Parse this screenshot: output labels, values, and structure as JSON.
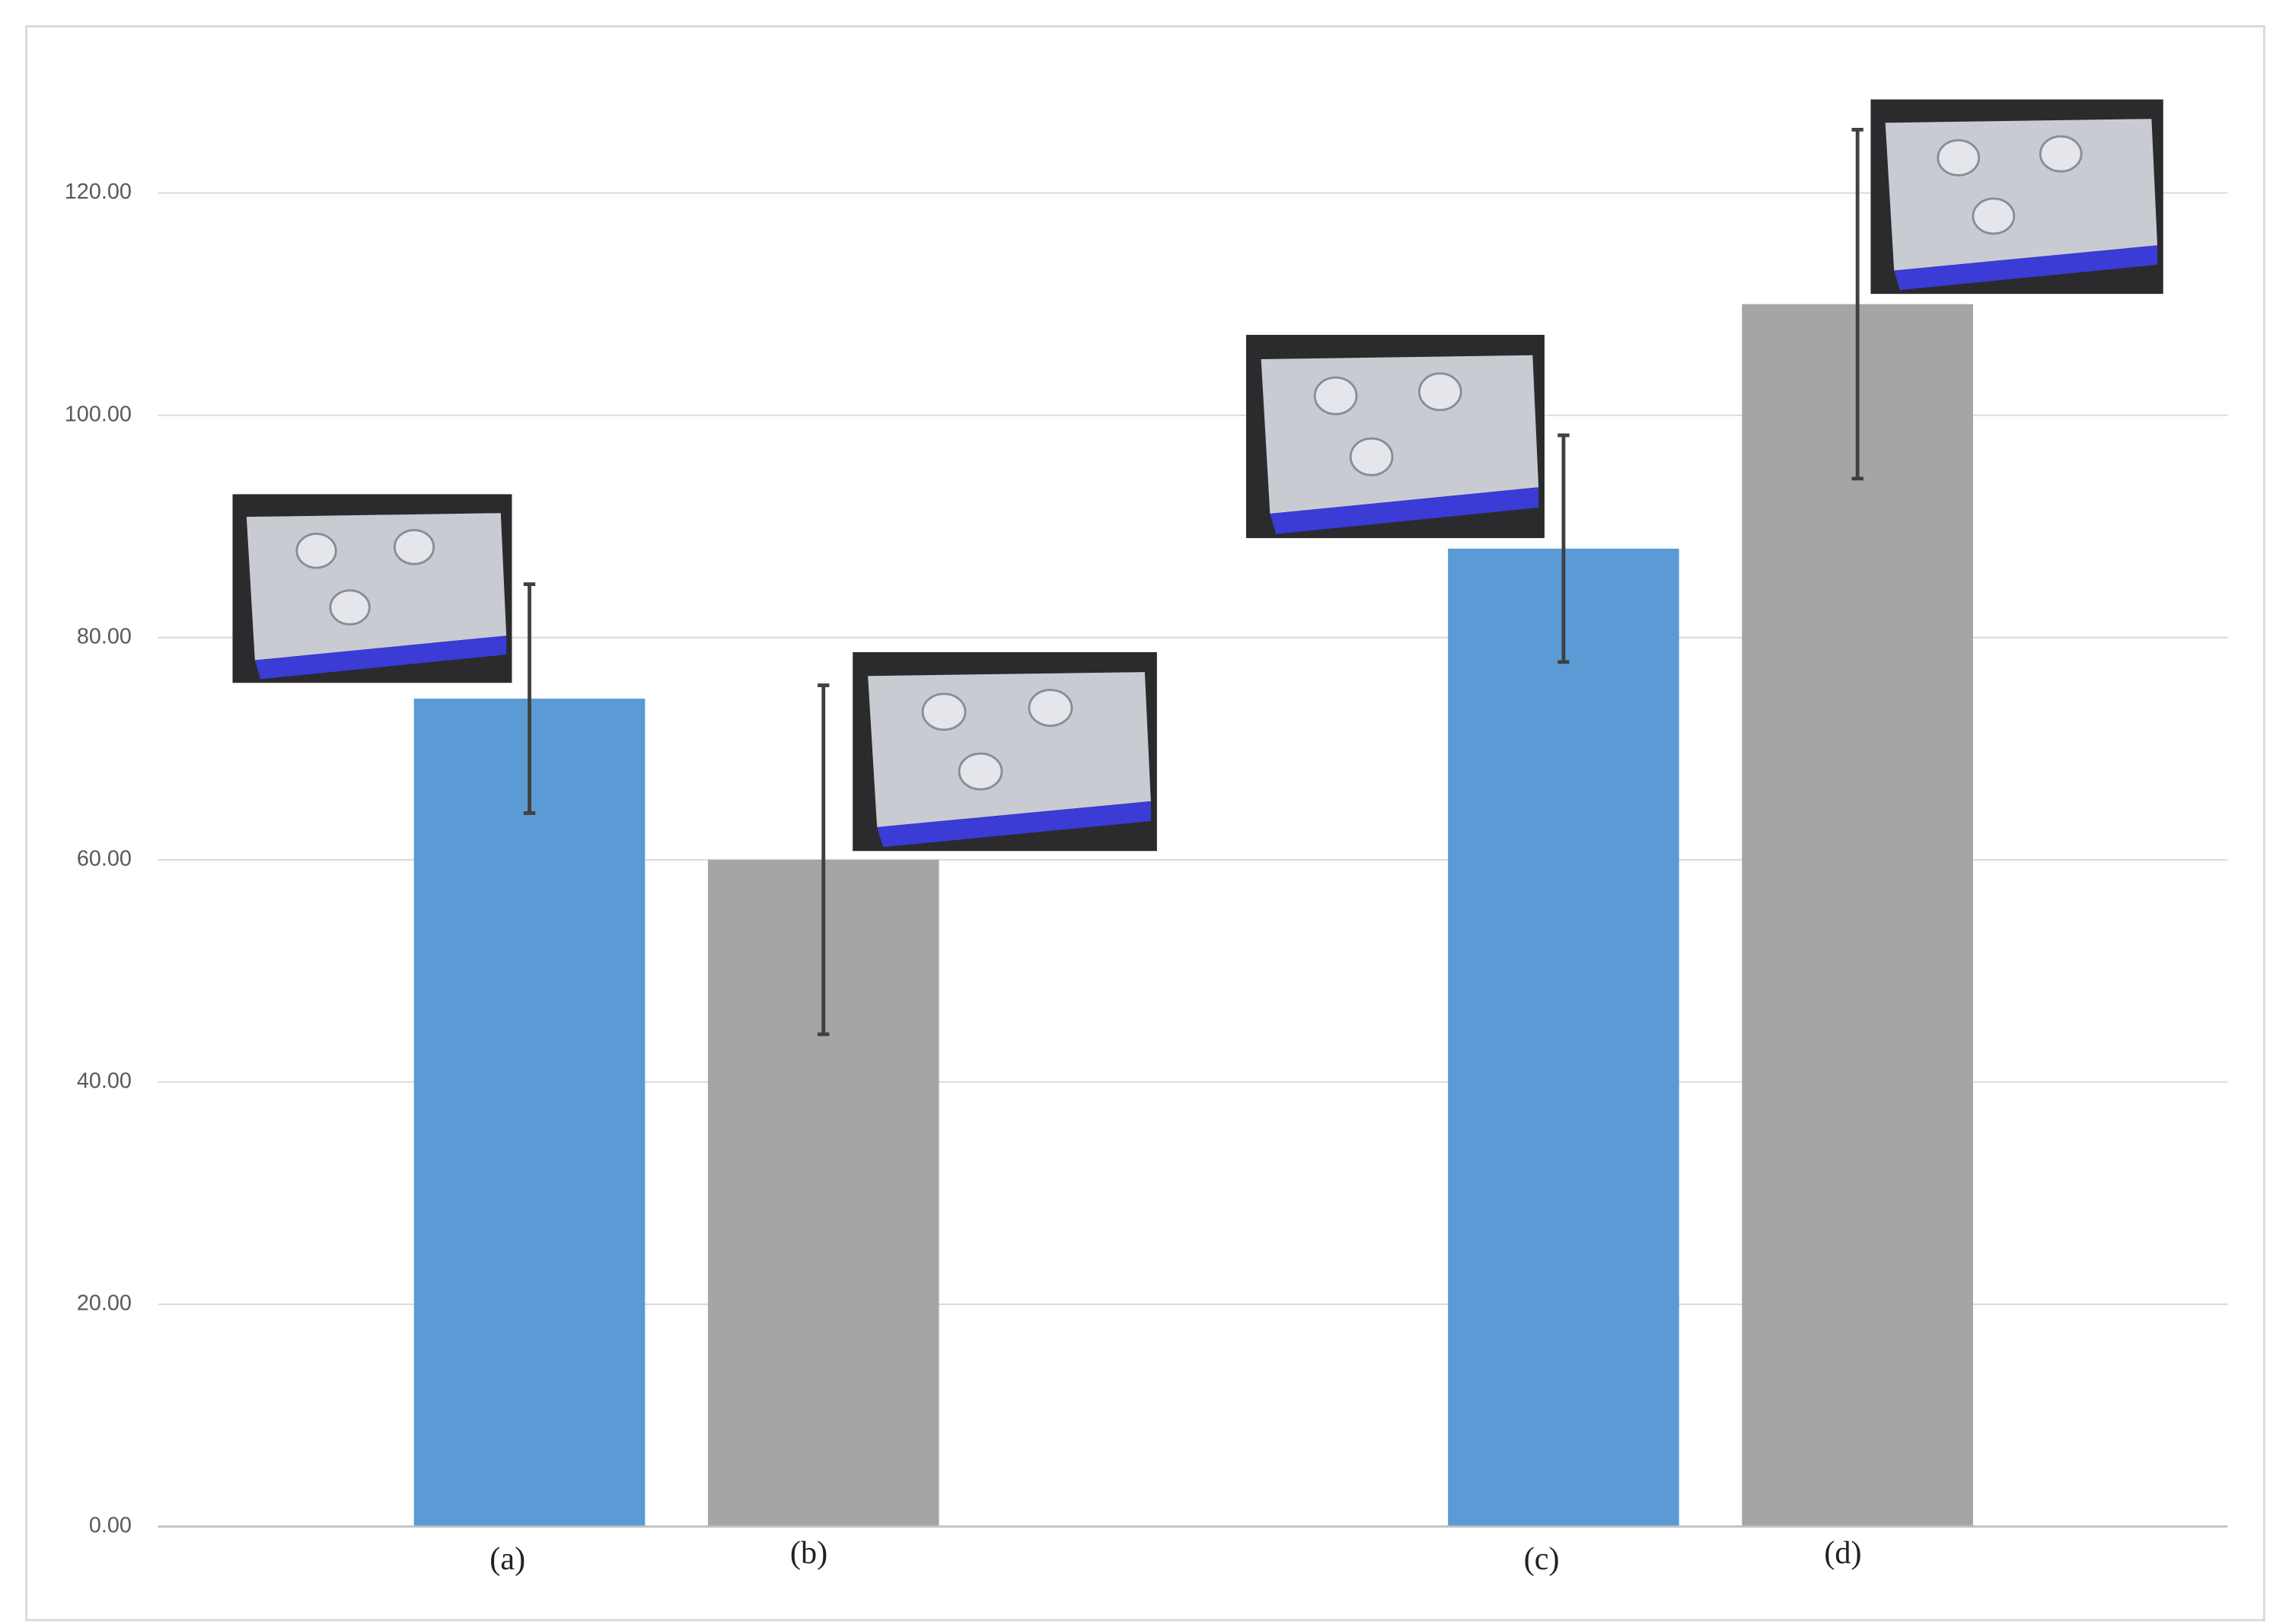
{
  "chart_data": {
    "type": "bar",
    "categories": [
      "(a)",
      "(b)",
      "(c)",
      "(d)"
    ],
    "values": [
      74.5,
      60,
      88,
      110
    ],
    "errors": [
      10.3,
      15.7,
      10.2,
      15.7
    ],
    "colors": [
      "#5b9bd5",
      "#a5a5a5",
      "#5b9bd5",
      "#a5a5a5"
    ],
    "ylim": [
      0,
      135
    ],
    "yticks": [
      {
        "value": 0,
        "label": "0.00"
      },
      {
        "value": 20,
        "label": "20.00"
      },
      {
        "value": 40,
        "label": "40.00"
      },
      {
        "value": 60,
        "label": "60.00"
      },
      {
        "value": 80,
        "label": "80.00"
      },
      {
        "value": 100,
        "label": "100.00"
      },
      {
        "value": 120,
        "label": "120.00"
      }
    ],
    "grid": true
  }
}
